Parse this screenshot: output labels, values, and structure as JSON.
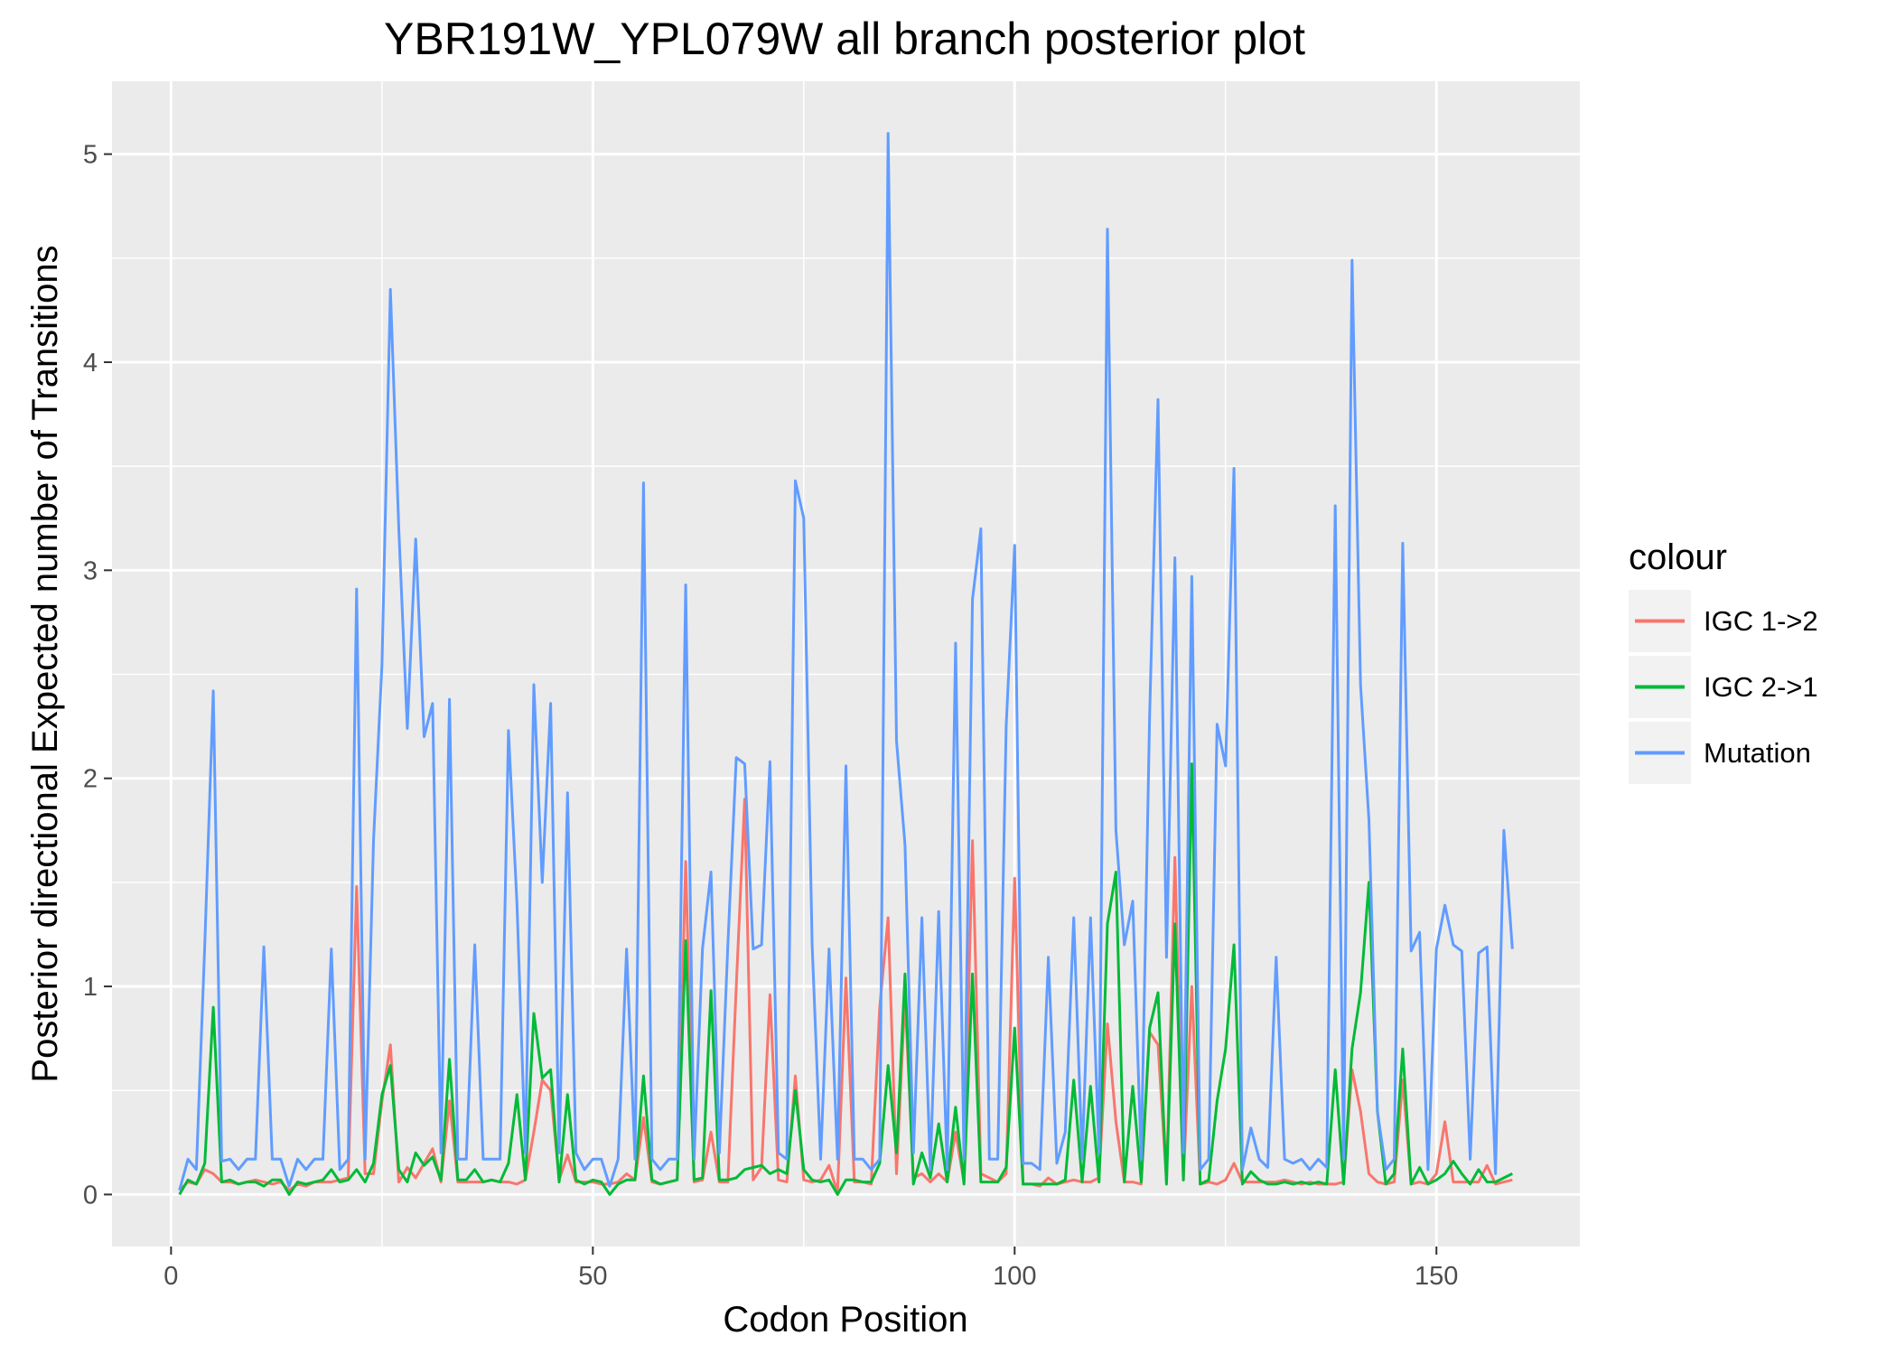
{
  "chart_data": {
    "type": "line",
    "title": "YBR191W_YPL079W all branch posterior plot",
    "xlabel": "Codon Position",
    "ylabel": "Posterior directional Expected number of Transitions",
    "xlim": [
      -7,
      167
    ],
    "ylim": [
      -0.25,
      5.35
    ],
    "x_ticks": [
      0,
      50,
      100,
      150
    ],
    "y_ticks": [
      0,
      1,
      2,
      3,
      4,
      5
    ],
    "grid": true,
    "legend": {
      "title": "colour",
      "position": "right"
    },
    "series": [
      {
        "name": "IGC 1->2",
        "color": "#F8766D",
        "x": [
          1,
          2,
          3,
          4,
          5,
          6,
          7,
          8,
          9,
          10,
          11,
          12,
          13,
          14,
          15,
          16,
          17,
          18,
          19,
          20,
          21,
          22,
          23,
          24,
          25,
          26,
          27,
          28,
          29,
          30,
          31,
          32,
          33,
          34,
          35,
          36,
          37,
          38,
          39,
          40,
          41,
          42,
          43,
          44,
          45,
          46,
          47,
          48,
          49,
          50,
          51,
          52,
          53,
          54,
          55,
          56,
          57,
          58,
          59,
          60,
          61,
          62,
          63,
          64,
          65,
          66,
          67,
          68,
          69,
          70,
          71,
          72,
          73,
          74,
          75,
          76,
          77,
          78,
          79,
          80,
          81,
          82,
          83,
          84,
          85,
          86,
          87,
          88,
          89,
          90,
          91,
          92,
          93,
          94,
          95,
          96,
          97,
          98,
          99,
          100,
          101,
          102,
          103,
          104,
          105,
          106,
          107,
          108,
          109,
          110,
          111,
          112,
          113,
          114,
          115,
          116,
          117,
          118,
          119,
          120,
          121,
          122,
          123,
          124,
          125,
          126,
          127,
          128,
          129,
          130,
          131,
          132,
          133,
          134,
          135,
          136,
          137,
          138,
          139,
          140,
          141,
          142,
          143,
          144,
          145,
          146,
          147,
          148,
          149,
          150,
          151,
          152,
          153,
          154,
          155,
          156,
          157,
          158,
          159
        ],
        "values": [
          0.02,
          0.06,
          0.05,
          0.12,
          0.1,
          0.06,
          0.06,
          0.05,
          0.06,
          0.07,
          0.06,
          0.05,
          0.06,
          0.02,
          0.05,
          0.04,
          0.06,
          0.06,
          0.06,
          0.07,
          0.08,
          1.48,
          0.1,
          0.1,
          0.45,
          0.72,
          0.06,
          0.13,
          0.08,
          0.15,
          0.22,
          0.06,
          0.45,
          0.06,
          0.06,
          0.06,
          0.06,
          0.07,
          0.06,
          0.06,
          0.05,
          0.07,
          0.3,
          0.55,
          0.5,
          0.07,
          0.19,
          0.06,
          0.06,
          0.06,
          0.05,
          0.05,
          0.06,
          0.1,
          0.07,
          0.37,
          0.06,
          0.05,
          0.06,
          0.07,
          1.6,
          0.06,
          0.07,
          0.3,
          0.06,
          0.06,
          1.0,
          1.9,
          0.07,
          0.13,
          0.96,
          0.07,
          0.06,
          0.57,
          0.07,
          0.06,
          0.07,
          0.14,
          0.01,
          1.04,
          0.06,
          0.06,
          0.05,
          0.9,
          1.33,
          0.1,
          0.95,
          0.08,
          0.1,
          0.06,
          0.1,
          0.06,
          0.3,
          0.06,
          1.7,
          0.1,
          0.08,
          0.06,
          0.1,
          1.52,
          0.05,
          0.05,
          0.04,
          0.08,
          0.05,
          0.06,
          0.07,
          0.06,
          0.06,
          0.08,
          0.82,
          0.35,
          0.06,
          0.06,
          0.05,
          0.78,
          0.72,
          0.06,
          1.62,
          0.07,
          1.0,
          0.05,
          0.06,
          0.05,
          0.07,
          0.15,
          0.06,
          0.06,
          0.06,
          0.06,
          0.06,
          0.07,
          0.06,
          0.05,
          0.06,
          0.05,
          0.05,
          0.05,
          0.06,
          0.6,
          0.4,
          0.1,
          0.06,
          0.05,
          0.06,
          0.55,
          0.05,
          0.06,
          0.05,
          0.1,
          0.35,
          0.06,
          0.06,
          0.06,
          0.06,
          0.14,
          0.05,
          0.06,
          0.07
        ]
      },
      {
        "name": "IGC 2->1",
        "color": "#00BA38",
        "x": [
          1,
          2,
          3,
          4,
          5,
          6,
          7,
          8,
          9,
          10,
          11,
          12,
          13,
          14,
          15,
          16,
          17,
          18,
          19,
          20,
          21,
          22,
          23,
          24,
          25,
          26,
          27,
          28,
          29,
          30,
          31,
          32,
          33,
          34,
          35,
          36,
          37,
          38,
          39,
          40,
          41,
          42,
          43,
          44,
          45,
          46,
          47,
          48,
          49,
          50,
          51,
          52,
          53,
          54,
          55,
          56,
          57,
          58,
          59,
          60,
          61,
          62,
          63,
          64,
          65,
          66,
          67,
          68,
          69,
          70,
          71,
          72,
          73,
          74,
          75,
          76,
          77,
          78,
          79,
          80,
          81,
          82,
          83,
          84,
          85,
          86,
          87,
          88,
          89,
          90,
          91,
          92,
          93,
          94,
          95,
          96,
          97,
          98,
          99,
          100,
          101,
          102,
          103,
          104,
          105,
          106,
          107,
          108,
          109,
          110,
          111,
          112,
          113,
          114,
          115,
          116,
          117,
          118,
          119,
          120,
          121,
          122,
          123,
          124,
          125,
          126,
          127,
          128,
          129,
          130,
          131,
          132,
          133,
          134,
          135,
          136,
          137,
          138,
          139,
          140,
          141,
          142,
          143,
          144,
          145,
          146,
          147,
          148,
          149,
          150,
          151,
          152,
          153,
          154,
          155,
          156,
          157,
          158,
          159
        ],
        "values": [
          0.0,
          0.07,
          0.05,
          0.15,
          0.9,
          0.06,
          0.07,
          0.05,
          0.06,
          0.06,
          0.04,
          0.07,
          0.07,
          0.0,
          0.06,
          0.05,
          0.06,
          0.07,
          0.12,
          0.06,
          0.07,
          0.12,
          0.06,
          0.15,
          0.48,
          0.62,
          0.12,
          0.06,
          0.2,
          0.14,
          0.18,
          0.07,
          0.65,
          0.07,
          0.07,
          0.12,
          0.06,
          0.07,
          0.06,
          0.15,
          0.48,
          0.07,
          0.87,
          0.56,
          0.6,
          0.06,
          0.48,
          0.07,
          0.05,
          0.07,
          0.06,
          0.0,
          0.05,
          0.07,
          0.07,
          0.57,
          0.07,
          0.05,
          0.06,
          0.07,
          1.22,
          0.07,
          0.08,
          0.98,
          0.07,
          0.07,
          0.08,
          0.12,
          0.13,
          0.14,
          0.1,
          0.12,
          0.1,
          0.5,
          0.12,
          0.07,
          0.06,
          0.07,
          0.0,
          0.07,
          0.07,
          0.06,
          0.06,
          0.15,
          0.62,
          0.2,
          1.06,
          0.05,
          0.2,
          0.08,
          0.34,
          0.06,
          0.42,
          0.05,
          1.06,
          0.06,
          0.06,
          0.06,
          0.13,
          0.8,
          0.05,
          0.05,
          0.05,
          0.05,
          0.05,
          0.07,
          0.55,
          0.06,
          0.52,
          0.06,
          1.3,
          1.55,
          0.06,
          0.52,
          0.06,
          0.8,
          0.97,
          0.05,
          1.3,
          0.07,
          2.07,
          0.05,
          0.07,
          0.45,
          0.7,
          1.2,
          0.05,
          0.11,
          0.07,
          0.05,
          0.05,
          0.06,
          0.05,
          0.06,
          0.05,
          0.06,
          0.05,
          0.6,
          0.05,
          0.7,
          0.97,
          1.5,
          0.4,
          0.05,
          0.1,
          0.7,
          0.05,
          0.13,
          0.05,
          0.07,
          0.1,
          0.16,
          0.1,
          0.05,
          0.12,
          0.06,
          0.06,
          0.08,
          0.1
        ]
      },
      {
        "name": "Mutation",
        "color": "#619CFF",
        "x": [
          1,
          2,
          3,
          4,
          5,
          6,
          7,
          8,
          9,
          10,
          11,
          12,
          13,
          14,
          15,
          16,
          17,
          18,
          19,
          20,
          21,
          22,
          23,
          24,
          25,
          26,
          27,
          28,
          29,
          30,
          31,
          32,
          33,
          34,
          35,
          36,
          37,
          38,
          39,
          40,
          41,
          42,
          43,
          44,
          45,
          46,
          47,
          48,
          49,
          50,
          51,
          52,
          53,
          54,
          55,
          56,
          57,
          58,
          59,
          60,
          61,
          62,
          63,
          64,
          65,
          66,
          67,
          68,
          69,
          70,
          71,
          72,
          73,
          74,
          75,
          76,
          77,
          78,
          79,
          80,
          81,
          82,
          83,
          84,
          85,
          86,
          87,
          88,
          89,
          90,
          91,
          92,
          93,
          94,
          95,
          96,
          97,
          98,
          99,
          100,
          101,
          102,
          103,
          104,
          105,
          106,
          107,
          108,
          109,
          110,
          111,
          112,
          113,
          114,
          115,
          116,
          117,
          118,
          119,
          120,
          121,
          122,
          123,
          124,
          125,
          126,
          127,
          128,
          129,
          130,
          131,
          132,
          133,
          134,
          135,
          136,
          137,
          138,
          139,
          140,
          141,
          142,
          143,
          144,
          145,
          146,
          147,
          148,
          149,
          150,
          151,
          152,
          153,
          154,
          155,
          156,
          157,
          158,
          159
        ],
        "values": [
          0.02,
          0.17,
          0.12,
          1.2,
          2.42,
          0.16,
          0.17,
          0.12,
          0.17,
          0.17,
          1.19,
          0.17,
          0.17,
          0.04,
          0.17,
          0.12,
          0.17,
          0.17,
          1.18,
          0.12,
          0.17,
          2.91,
          0.17,
          1.7,
          2.55,
          4.35,
          3.2,
          2.24,
          3.15,
          2.2,
          2.36,
          0.2,
          2.38,
          0.17,
          0.17,
          1.2,
          0.17,
          0.17,
          0.17,
          2.23,
          1.4,
          0.2,
          2.45,
          1.5,
          2.36,
          0.2,
          1.93,
          0.2,
          0.12,
          0.17,
          0.17,
          0.04,
          0.17,
          1.18,
          0.17,
          3.42,
          0.17,
          0.12,
          0.17,
          0.17,
          2.93,
          0.17,
          1.18,
          1.55,
          0.2,
          1.2,
          2.1,
          2.07,
          1.18,
          1.2,
          2.08,
          0.2,
          0.17,
          3.43,
          3.25,
          1.2,
          0.17,
          1.18,
          0.17,
          2.06,
          0.17,
          0.17,
          0.12,
          0.17,
          5.1,
          2.18,
          1.68,
          0.2,
          1.33,
          0.12,
          1.36,
          0.12,
          2.65,
          0.17,
          2.86,
          3.2,
          0.17,
          0.17,
          2.25,
          3.12,
          0.15,
          0.15,
          0.12,
          1.14,
          0.15,
          0.3,
          1.33,
          0.17,
          1.33,
          0.2,
          4.64,
          1.75,
          1.2,
          1.41,
          0.17,
          2.3,
          3.82,
          1.14,
          3.06,
          0.2,
          2.97,
          0.12,
          0.17,
          2.26,
          2.06,
          3.49,
          0.12,
          0.32,
          0.17,
          0.13,
          1.14,
          0.17,
          0.15,
          0.17,
          0.12,
          0.17,
          0.13,
          3.31,
          0.17,
          4.49,
          2.45,
          1.8,
          0.4,
          0.12,
          0.17,
          3.13,
          1.17,
          1.26,
          0.12,
          1.18,
          1.39,
          1.2,
          1.17,
          0.17,
          1.16,
          1.19,
          0.1,
          1.75,
          1.18
        ]
      }
    ]
  }
}
